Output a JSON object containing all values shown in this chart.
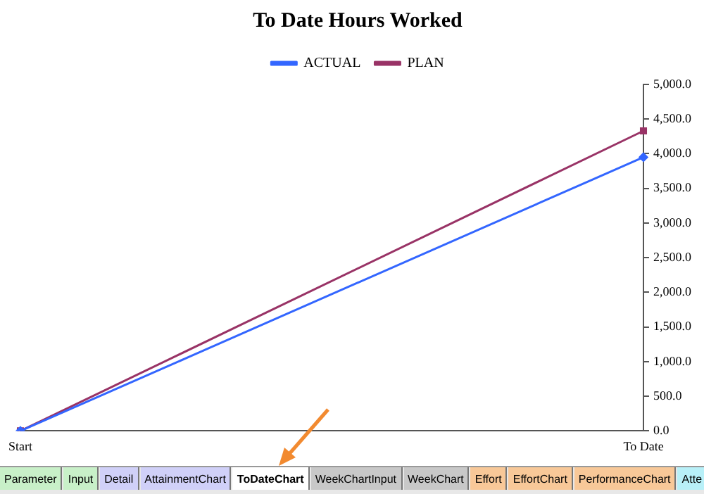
{
  "chart_data": {
    "type": "line",
    "title": "To Date Hours Worked",
    "categories": [
      "Start",
      "To Date"
    ],
    "series": [
      {
        "name": "ACTUAL",
        "color": "#3366ff",
        "values": [
          0,
          3950
        ],
        "marker": "diamond"
      },
      {
        "name": "PLAN",
        "color": "#993366",
        "values": [
          0,
          4330
        ],
        "marker": "square"
      }
    ],
    "ylim": [
      0,
      5000
    ],
    "yticks": [
      {
        "value": 0,
        "label": "0.0"
      },
      {
        "value": 500,
        "label": "500.0"
      },
      {
        "value": 1000,
        "label": "1,000.0"
      },
      {
        "value": 1500,
        "label": "1,500.0"
      },
      {
        "value": 2000,
        "label": "2,000.0"
      },
      {
        "value": 2500,
        "label": "2,500.0"
      },
      {
        "value": 3000,
        "label": "3,000.0"
      },
      {
        "value": 3500,
        "label": "3,500.0"
      },
      {
        "value": 4000,
        "label": "4,000.0"
      },
      {
        "value": 4500,
        "label": "4,500.0"
      },
      {
        "value": 5000,
        "label": "5,000.0"
      }
    ],
    "grid": false,
    "legend": "top",
    "line_style": "solid",
    "annotations": [
      "Parameter",
      "Input",
      "Detail",
      "AttainmentChart",
      "ToDateChart",
      "WeekChartInput",
      "WeekChart",
      "Effort",
      "EffortChart",
      "PerformanceChart",
      "Atte"
    ]
  }
}
